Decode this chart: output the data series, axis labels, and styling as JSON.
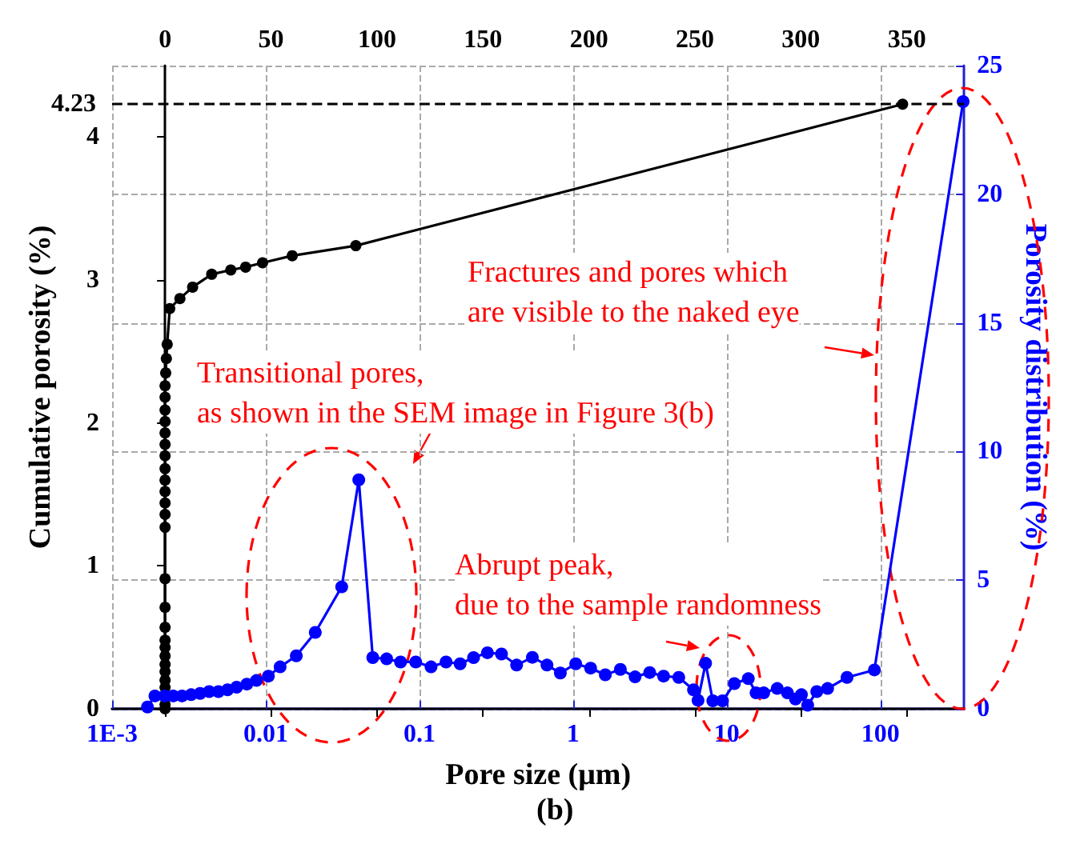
{
  "chart_data": {
    "type": "line",
    "xlabel": "Pore size (μm)",
    "ylabel": "Cumulative porosity (%)",
    "y2label": "Porosity distribution (%)",
    "log": "x",
    "xlim": [
      0.001,
      350
    ],
    "xticks": [
      {
        "value": 0.001,
        "label": "1E-3"
      },
      0.01,
      0.1,
      1,
      10,
      100
    ],
    "x2lim": [
      -25,
      377
    ],
    "x2ticks": [
      0,
      50,
      100,
      150,
      200,
      250,
      300,
      350
    ],
    "ylim": [
      0,
      4.5
    ],
    "yticks": [
      0,
      1,
      2,
      3,
      4
    ],
    "y2lim": [
      0,
      25
    ],
    "y2ticks": [
      0,
      5,
      10,
      15,
      20,
      25
    ],
    "grid": true,
    "marker": "circle",
    "line_style": "solid",
    "ref_lines": [
      {
        "axis": "y",
        "value": 4.23,
        "label": "4.23",
        "color": "#000000",
        "line_style": "dashed"
      }
    ],
    "series": [
      {
        "color": "#000000",
        "axis": "x2",
        "x": [
          0,
          0,
          0,
          0,
          0,
          0,
          0,
          0,
          0,
          0,
          0,
          0,
          0,
          0,
          0,
          0,
          0,
          0,
          0,
          0,
          0,
          0,
          0,
          0,
          0,
          0,
          0.3,
          0.6,
          1,
          2.2,
          7,
          13,
          22,
          31,
          38,
          46,
          60,
          90,
          348
        ],
        "values": [
          0,
          0.03,
          0.09,
          0.15,
          0.2,
          0.26,
          0.31,
          0.37,
          0.43,
          0.48,
          0.57,
          0.71,
          0.91,
          1.27,
          1.36,
          1.44,
          1.52,
          1.6,
          1.68,
          1.77,
          1.85,
          1.93,
          2.01,
          2.09,
          2.18,
          2.26,
          2.35,
          2.45,
          2.55,
          2.8,
          2.87,
          2.95,
          3.04,
          3.07,
          3.09,
          3.12,
          3.17,
          3.24,
          4.23
        ]
      },
      {
        "color": "#0000ff",
        "axis": "y2",
        "x": [
          0.0017,
          0.0019,
          0.0022,
          0.0025,
          0.00285,
          0.00327,
          0.00374,
          0.00428,
          0.00492,
          0.00564,
          0.00646,
          0.00753,
          0.0087,
          0.0104,
          0.0124,
          0.0158,
          0.021,
          0.0312,
          0.0403,
          0.0497,
          0.0612,
          0.0754,
          0.0946,
          0.119,
          0.149,
          0.184,
          0.225,
          0.277,
          0.342,
          0.429,
          0.543,
          0.676,
          0.826,
          1.04,
          1.3,
          1.62,
          2.03,
          2.53,
          3.15,
          3.88,
          4.87,
          6.07,
          6.5,
          7.28,
          8.11,
          9.38,
          11.2,
          13.8,
          15.5,
          17.4,
          21.3,
          24.8,
          28,
          30.6,
          33.6,
          38.5,
          45.3,
          60.6,
          91.3,
          345
        ],
        "values": [
          0.07,
          0.5,
          0.5,
          0.5,
          0.5,
          0.55,
          0.6,
          0.67,
          0.67,
          0.74,
          0.84,
          0.96,
          1.1,
          1.27,
          1.63,
          2.06,
          2.97,
          4.74,
          8.9,
          1.99,
          1.94,
          1.82,
          1.82,
          1.63,
          1.82,
          1.75,
          1.99,
          2.18,
          2.13,
          1.7,
          2,
          1.7,
          1.39,
          1.75,
          1.58,
          1.32,
          1.53,
          1.24,
          1.41,
          1.27,
          1.22,
          0.74,
          0.33,
          1.77,
          0.31,
          0.31,
          0.98,
          1.17,
          0.62,
          0.62,
          0.79,
          0.62,
          0.38,
          0.55,
          0.14,
          0.67,
          0.79,
          1.22,
          1.51,
          23.6
        ]
      }
    ],
    "annotations": [
      "Fractures and pores which\nare visible to the naked eye",
      "Transitional pores,\nas shown in the SEM image in Figure 3(b)",
      "Abrupt peak,\ndue to the sample randomness",
      "(b)"
    ]
  }
}
